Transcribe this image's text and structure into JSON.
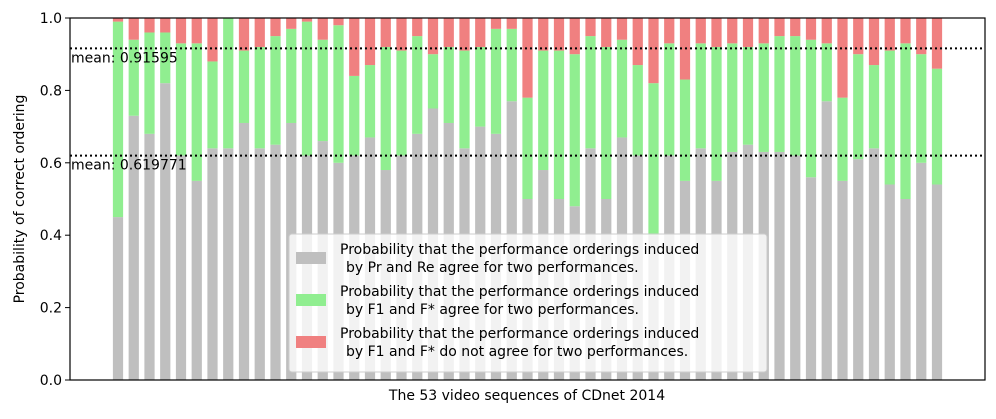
{
  "chart_data": {
    "type": "bar",
    "stacked": true,
    "xlabel": "The 53 video sequences of CDnet 2014",
    "ylabel": "Probability of correct ordering",
    "ylim": [
      0.0,
      1.0
    ],
    "yticks": [
      0.0,
      0.2,
      0.4,
      0.6,
      0.8,
      1.0
    ],
    "ytick_labels": [
      "0.0",
      "0.2",
      "0.4",
      "0.6",
      "0.8",
      "1.0"
    ],
    "grid": false,
    "legend_position": "bottom-center",
    "series": [
      {
        "name": "Probability that the performance orderings induced by Pr and Re agree for two performances.",
        "legend_line1": "Probability that the performance orderings induced",
        "legend_line2": "by Pr and Re agree for two performances.",
        "color": "#bfbfbf",
        "values": [
          0.45,
          0.73,
          0.68,
          0.82,
          0.62,
          0.55,
          0.64,
          0.64,
          0.71,
          0.64,
          0.65,
          0.71,
          0.62,
          0.66,
          0.6,
          0.62,
          0.67,
          0.58,
          0.62,
          0.68,
          0.75,
          0.71,
          0.64,
          0.7,
          0.68,
          0.77,
          0.5,
          0.58,
          0.5,
          0.48,
          0.64,
          0.5,
          0.67,
          0.62,
          0.4,
          0.62,
          0.55,
          0.64,
          0.55,
          0.63,
          0.65,
          0.63,
          0.63,
          0.62,
          0.56,
          0.77,
          0.55,
          0.61,
          0.64,
          0.54,
          0.5,
          0.6,
          0.54
        ]
      },
      {
        "name": "Probability that the performance orderings induced by F1 and F* agree for two performances.",
        "legend_line1": "Probability that the performance orderings induced",
        "legend_line2": "by F1 and F* agree for two performances.",
        "color": "#90ee90",
        "values": [
          0.54,
          0.21,
          0.28,
          0.14,
          0.31,
          0.38,
          0.24,
          0.36,
          0.2,
          0.28,
          0.3,
          0.26,
          0.37,
          0.28,
          0.38,
          0.22,
          0.2,
          0.34,
          0.29,
          0.27,
          0.15,
          0.21,
          0.27,
          0.22,
          0.29,
          0.2,
          0.28,
          0.33,
          0.41,
          0.42,
          0.31,
          0.42,
          0.27,
          0.25,
          0.42,
          0.31,
          0.28,
          0.29,
          0.37,
          0.3,
          0.27,
          0.3,
          0.32,
          0.33,
          0.38,
          0.16,
          0.23,
          0.29,
          0.23,
          0.37,
          0.43,
          0.3,
          0.32
        ]
      },
      {
        "name": "Probability that the performance orderings induced by F1 and F* do not agree for two performances.",
        "legend_line1": "Probability that the performance orderings induced",
        "legend_line2": "by F1 and F* do not agree for two performances.",
        "color": "#f08080",
        "values": [
          0.01,
          0.06,
          0.04,
          0.04,
          0.07,
          0.07,
          0.12,
          0.0,
          0.09,
          0.08,
          0.05,
          0.03,
          0.01,
          0.06,
          0.02,
          0.16,
          0.13,
          0.08,
          0.09,
          0.05,
          0.1,
          0.08,
          0.09,
          0.08,
          0.03,
          0.03,
          0.22,
          0.09,
          0.09,
          0.1,
          0.05,
          0.08,
          0.06,
          0.13,
          0.18,
          0.07,
          0.17,
          0.07,
          0.08,
          0.07,
          0.08,
          0.07,
          0.05,
          0.05,
          0.06,
          0.07,
          0.22,
          0.1,
          0.13,
          0.09,
          0.07,
          0.1,
          0.14
        ]
      }
    ],
    "reference_lines": [
      {
        "value": 0.91595,
        "label": "mean: 0.91595"
      },
      {
        "value": 0.619771,
        "label": "mean: 0.619771"
      }
    ]
  }
}
